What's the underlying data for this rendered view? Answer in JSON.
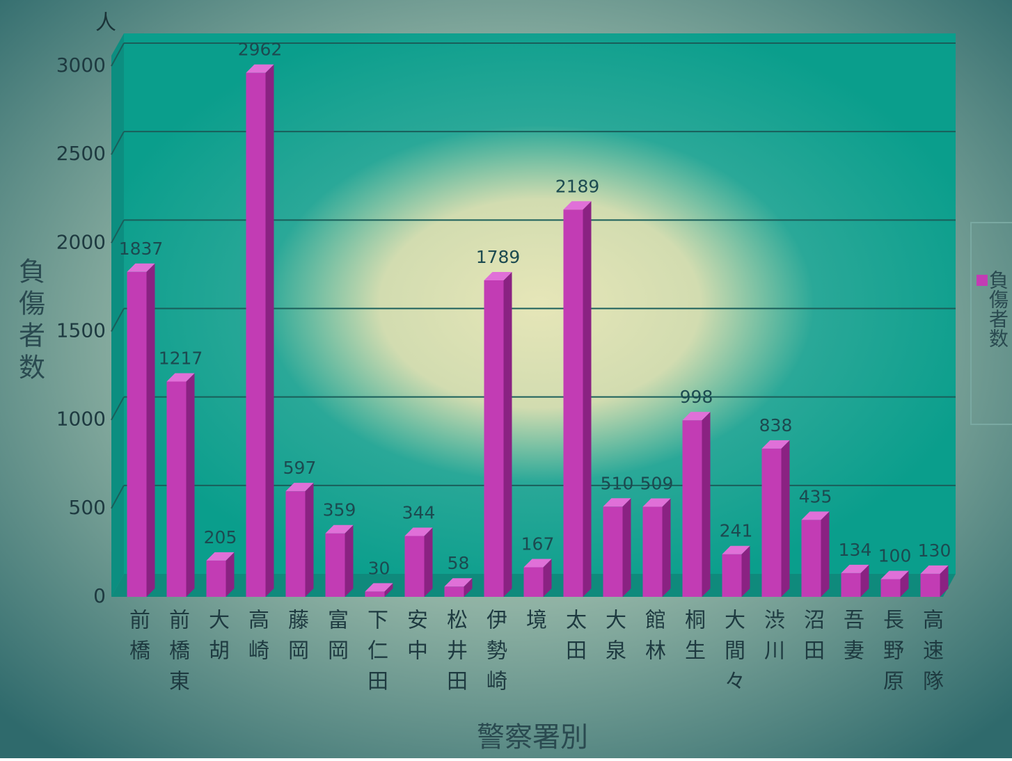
{
  "chart_data": {
    "type": "bar",
    "y_label": "負傷者数",
    "y_unit": "人",
    "x_label": "警察署別",
    "categories": [
      "前橋",
      "前橋東",
      "大胡",
      "高崎",
      "藤岡",
      "富岡",
      "下仁田",
      "安中",
      "松井田",
      "伊勢崎",
      "境",
      "太田",
      "大泉",
      "館林",
      "桐生",
      "大間々",
      "渋川",
      "沼田",
      "吾妻",
      "長野原",
      "高速隊"
    ],
    "series": [
      {
        "name": "負傷者数",
        "color": "#c23cb4",
        "values": [
          1837,
          1217,
          205,
          2962,
          597,
          359,
          30,
          344,
          58,
          1789,
          167,
          2189,
          510,
          509,
          998,
          241,
          838,
          435,
          134,
          100,
          130
        ]
      }
    ],
    "ylim": [
      0,
      3000
    ],
    "yticks": [
      0,
      500,
      1000,
      1500,
      2000,
      2500,
      3000
    ],
    "grid": true,
    "legend": "right"
  }
}
